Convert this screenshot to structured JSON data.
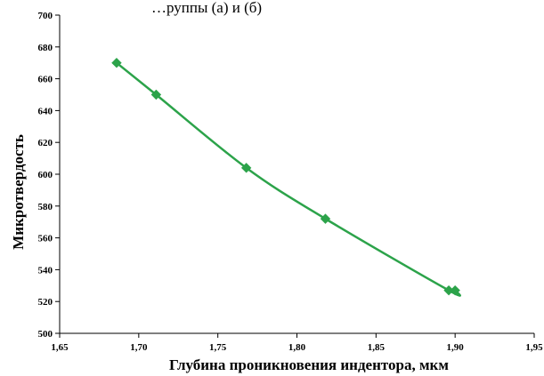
{
  "chart_data": {
    "type": "scatter",
    "title_fragment": "…руппы (а) и (б)",
    "xlabel": "Глубина проникновения индентора, мкм",
    "ylabel": "Микротвердость",
    "xlim": [
      1.65,
      1.95
    ],
    "ylim": [
      500,
      700
    ],
    "x_ticks": [
      "1,65",
      "1,70",
      "1,75",
      "1,80",
      "1,85",
      "1,90",
      "1,95"
    ],
    "y_ticks": [
      "500",
      "520",
      "540",
      "560",
      "580",
      "600",
      "620",
      "640",
      "660",
      "680",
      "700"
    ],
    "grid": false,
    "series": [
      {
        "marker": "diamond",
        "color": "#2ca34a",
        "line": "smooth",
        "points": [
          {
            "x": 1.686,
            "y": 670
          },
          {
            "x": 1.711,
            "y": 650
          },
          {
            "x": 1.768,
            "y": 604
          },
          {
            "x": 1.818,
            "y": 572
          },
          {
            "x": 1.896,
            "y": 527
          },
          {
            "x": 1.9,
            "y": 527
          }
        ]
      }
    ]
  }
}
